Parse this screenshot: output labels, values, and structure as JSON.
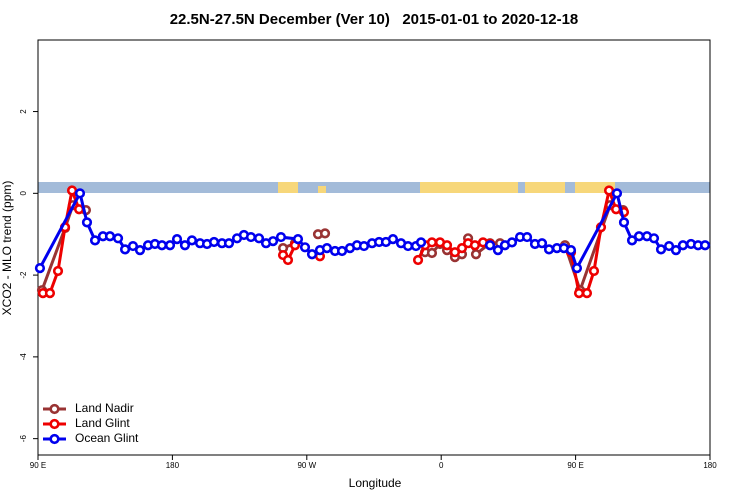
{
  "chart_data": {
    "type": "line",
    "title": "22.5N-27.5N December (Ver 10)   2015-01-01 to 2020-12-18",
    "xlabel": "Longitude",
    "ylabel": "XCO2 - MLO trend (ppm)",
    "xlim": [
      90,
      540
    ],
    "ylim": [
      -6.4,
      3.75
    ],
    "xticks": [
      {
        "value": 90,
        "label": "90 E"
      },
      180,
      {
        "value": 270,
        "label": "90 W"
      },
      {
        "value": 360,
        "label": "0"
      },
      {
        "value": 450,
        "label": "90 E"
      },
      180
    ],
    "yticks": [
      -6,
      -4,
      -2,
      0,
      2
    ],
    "legend": "lower left",
    "series": [
      {
        "name": "Land Nadir",
        "color": "#993333",
        "x": [
          92.7,
          108.1,
          113.4,
          122.1,
          null,
          254.1,
          262.1,
          null,
          277.5,
          282.2,
          null,
          349.2,
          353.8,
          359.2,
          363.9,
          369.2,
          373.9,
          378.0,
          383.3,
          392.7,
          399.4,
          null,
          442.9,
          453.0,
          473.1,
          481.8
        ],
        "values": [
          -2.37,
          -0.85,
          -0.29,
          -0.41,
          null,
          -1.34,
          -1.22,
          null,
          -1.0,
          -0.98,
          null,
          -1.44,
          -1.46,
          -1.24,
          -1.39,
          -1.56,
          -1.49,
          -1.1,
          -1.49,
          -1.22,
          -1.22,
          null,
          -1.27,
          -2.37,
          -0.29,
          -0.41
        ]
      },
      {
        "name": "Land Glint",
        "color": "#ee0000",
        "x": [
          93.3,
          98.0,
          103.4,
          108.1,
          112.8,
          117.5,
          null,
          254.1,
          257.4,
          262.1,
          null,
          278.8,
          null,
          344.5,
          349.2,
          353.8,
          359.2,
          363.9,
          369.2,
          373.9,
          378.0,
          382.6,
          388.0,
          392.7,
          null,
          446.9,
          452.3,
          457.6,
          462.3,
          467.0,
          472.4,
          477.1,
          482.4
        ],
        "values": [
          -2.44,
          -2.44,
          -1.9,
          -0.83,
          0.07,
          -0.39,
          null,
          -1.51,
          -1.63,
          -1.27,
          null,
          -1.54,
          null,
          -1.63,
          -1.27,
          -1.2,
          -1.2,
          -1.27,
          -1.44,
          -1.34,
          -1.22,
          -1.27,
          -1.2,
          -1.24,
          null,
          -1.44,
          -2.44,
          -2.44,
          -1.9,
          -0.83,
          0.07,
          -0.39,
          -0.46
        ]
      },
      {
        "name": "Ocean Glint",
        "color": "#0000ee",
        "x": [
          91.3,
          118.1,
          122.8,
          128.2,
          133.5,
          138.2,
          143.6,
          148.3,
          153.6,
          158.3,
          163.7,
          168.3,
          173.0,
          178.4,
          183.1,
          188.4,
          193.1,
          198.5,
          203.2,
          207.9,
          213.2,
          217.9,
          223.3,
          227.9,
          232.6,
          238.0,
          242.7,
          247.4,
          252.7,
          264.1,
          268.8,
          273.5,
          278.8,
          283.5,
          288.9,
          293.6,
          298.9,
          303.6,
          308.3,
          313.7,
          318.4,
          323.0,
          327.7,
          333.1,
          337.8,
          343.1,
          346.5,
          null,
          392.7,
          398.0,
          402.7,
          407.4,
          412.8,
          417.5,
          422.8,
          427.5,
          432.2,
          437.5,
          442.2,
          446.9,
          450.9,
          477.7,
          482.4,
          487.8,
          492.5,
          497.8,
          502.5,
          507.2,
          512.6,
          517.2,
          521.9,
          527.3,
          532.0,
          536.7
        ],
        "values": [
          -1.83,
          0,
          -0.71,
          -1.15,
          -1.05,
          -1.05,
          -1.1,
          -1.37,
          -1.29,
          -1.39,
          -1.27,
          -1.24,
          -1.27,
          -1.27,
          -1.12,
          -1.27,
          -1.15,
          -1.22,
          -1.24,
          -1.19,
          -1.22,
          -1.22,
          -1.1,
          -1.02,
          -1.07,
          -1.1,
          -1.22,
          -1.17,
          -1.07,
          -1.12,
          -1.32,
          -1.49,
          -1.39,
          -1.34,
          -1.41,
          -1.41,
          -1.34,
          -1.27,
          -1.29,
          -1.22,
          -1.19,
          -1.19,
          -1.12,
          -1.22,
          -1.29,
          -1.29,
          -1.2,
          null,
          -1.27,
          -1.39,
          -1.27,
          -1.2,
          -1.07,
          -1.07,
          -1.24,
          -1.22,
          -1.37,
          -1.34,
          -1.34,
          -1.39,
          -1.83,
          0,
          -0.71,
          -1.15,
          -1.05,
          -1.05,
          -1.1,
          -1.37,
          -1.29,
          -1.39,
          -1.27,
          -1.24,
          -1.27,
          -1.27
        ]
      }
    ]
  }
}
